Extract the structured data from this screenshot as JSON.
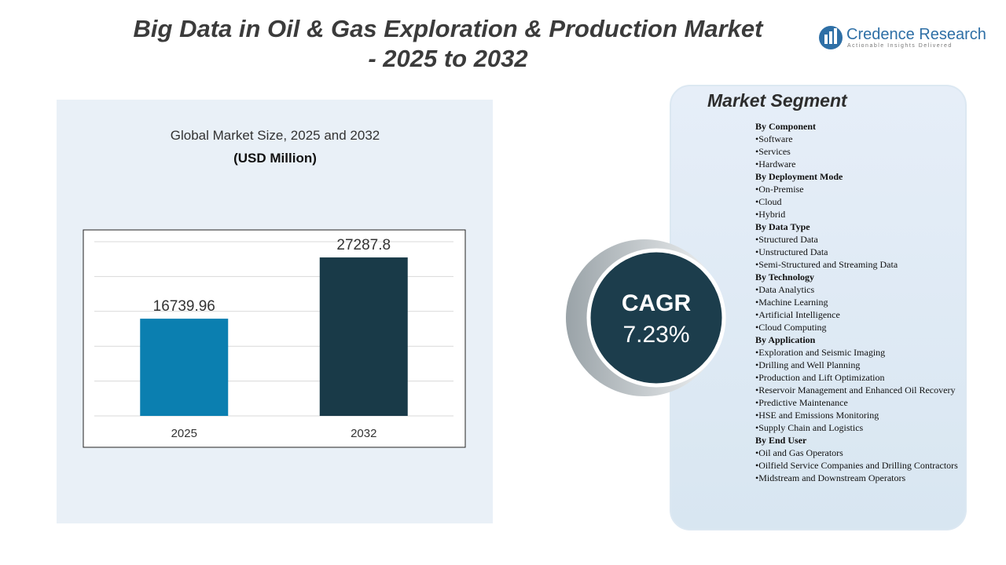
{
  "title_lines": [
    "Big Data in Oil & Gas Exploration & Production Market",
    "- 2025 to 2032"
  ],
  "logo": {
    "name": "Credence Research",
    "tagline": "Actionable Insights Delivered"
  },
  "chart_data": {
    "type": "bar",
    "title": "Global Market Size, 2025 and 2032",
    "subtitle": "(USD Million)",
    "categories": [
      "2025",
      "2032"
    ],
    "values": [
      16739.96,
      27287.8
    ],
    "colors": [
      "#0b7fb0",
      "#193a48"
    ],
    "ylim": [
      0,
      30000
    ],
    "yticks": [
      0,
      6000,
      12000,
      18000,
      24000,
      30000
    ],
    "grid": true
  },
  "cagr": {
    "label": "CAGR",
    "value": "7.23%"
  },
  "segments": {
    "title": "Market Segment",
    "groups": [
      {
        "heading": "By Component",
        "items": [
          "•Software",
          "•Services",
          "•Hardware"
        ]
      },
      {
        "heading": "By Deployment  Mode",
        "items": [
          "•On-Premise",
          "•Cloud",
          "•Hybrid"
        ]
      },
      {
        "heading": "By Data  Type",
        "items": [
          "•Structured Data",
          "•Unstructured Data",
          "•Semi-Structured  and Streaming  Data"
        ]
      },
      {
        "heading": "By Technology",
        "items": [
          "•Data  Analytics",
          "•Machine Learning",
          "•Artificial  Intelligence",
          "•Cloud Computing"
        ]
      },
      {
        "heading": "By Application",
        "items": [
          "•Exploration  and Seismic Imaging",
          "•Drilling  and Well Planning",
          "•Production and Lift  Optimization",
          "•Reservoir Management and Enhanced Oil Recovery",
          "•Predictive Maintenance",
          "•HSE and Emissions Monitoring",
          "•Supply Chain and Logistics"
        ]
      },
      {
        "heading": "By End  User",
        "items": [
          "•Oil and Gas Operators",
          "•Oilfield  Service Companies  and Drilling Contractors",
          "•Midstream and Downstream Operators"
        ]
      }
    ]
  }
}
